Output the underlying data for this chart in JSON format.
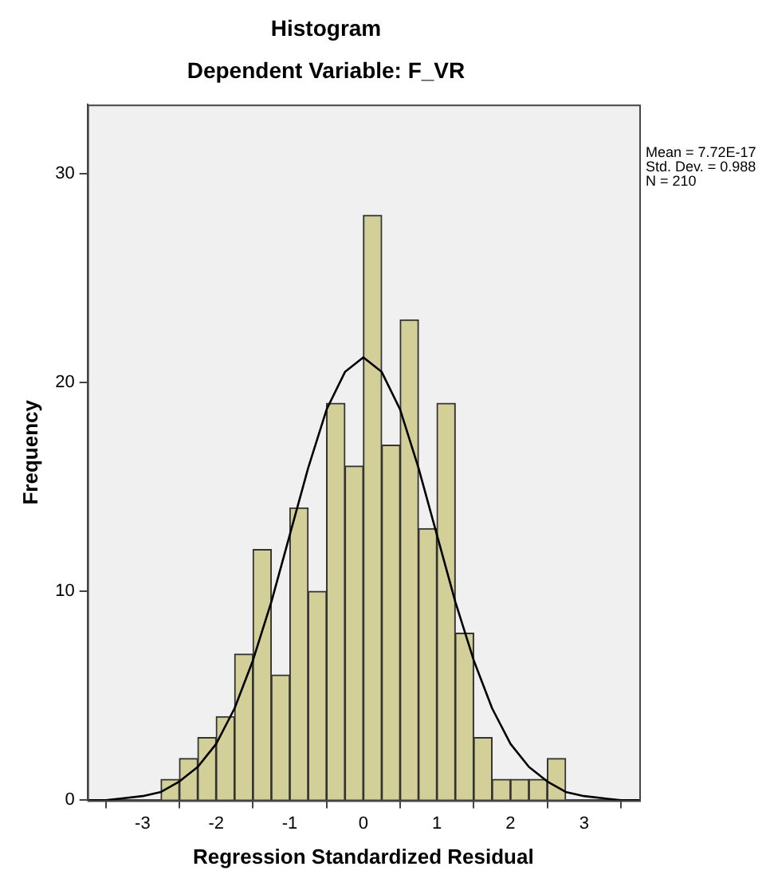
{
  "chart_data": {
    "type": "histogram",
    "title": "Histogram",
    "subtitle": "Dependent Variable: F_VR",
    "xlabel": "Regression Standardized Residual",
    "ylabel": "Frequency",
    "bins": [
      -2.75,
      -2.5,
      -2.25,
      -2,
      -1.75,
      -1.5,
      -1.25,
      -1,
      -0.75,
      -0.5,
      -0.25,
      0,
      0.25,
      0.5,
      0.75,
      1,
      1.25,
      1.5,
      1.75,
      2,
      2.25,
      2.5,
      2.75
    ],
    "values": [
      1,
      2,
      3,
      4,
      7,
      12,
      6,
      14,
      10,
      19,
      16,
      28,
      17,
      23,
      13,
      19,
      8,
      3,
      1,
      1,
      1,
      2
    ],
    "color": "#d3cf98",
    "series": [
      {
        "type": "line",
        "color": "#000000",
        "x": [
          -3.75,
          -3.5,
          -3.25,
          -3,
          -2.75,
          -2.5,
          -2.25,
          -2,
          -1.75,
          -1.5,
          -1.25,
          -1,
          -0.75,
          -0.5,
          -0.25,
          0,
          0.25,
          0.5,
          0.75,
          1,
          1.25,
          1.5,
          1.75,
          2,
          2.25,
          2.5,
          2.75,
          3,
          3.25,
          3.5,
          3.75
        ],
        "values": [
          0,
          0,
          0.1,
          0.2,
          0.4,
          0.9,
          1.6,
          2.7,
          4.4,
          6.7,
          9.5,
          12.7,
          15.9,
          18.7,
          20.5,
          21.2,
          20.5,
          18.7,
          15.9,
          12.7,
          9.5,
          6.7,
          4.4,
          2.7,
          1.6,
          0.9,
          0.4,
          0.2,
          0.1,
          0,
          0
        ]
      }
    ],
    "xlim": [
      -3.75,
      3.75
    ],
    "xticks": [
      -3,
      -2,
      -1,
      0,
      1,
      2,
      3
    ],
    "ylim": [
      0,
      33.3
    ],
    "yticks": [
      0,
      10,
      20,
      30
    ],
    "annotations": [
      "Mean = 7.72E-17",
      "Std. Dev. = 0.988",
      "N = 210"
    ],
    "grid": false,
    "legend": false,
    "marker": "none"
  }
}
